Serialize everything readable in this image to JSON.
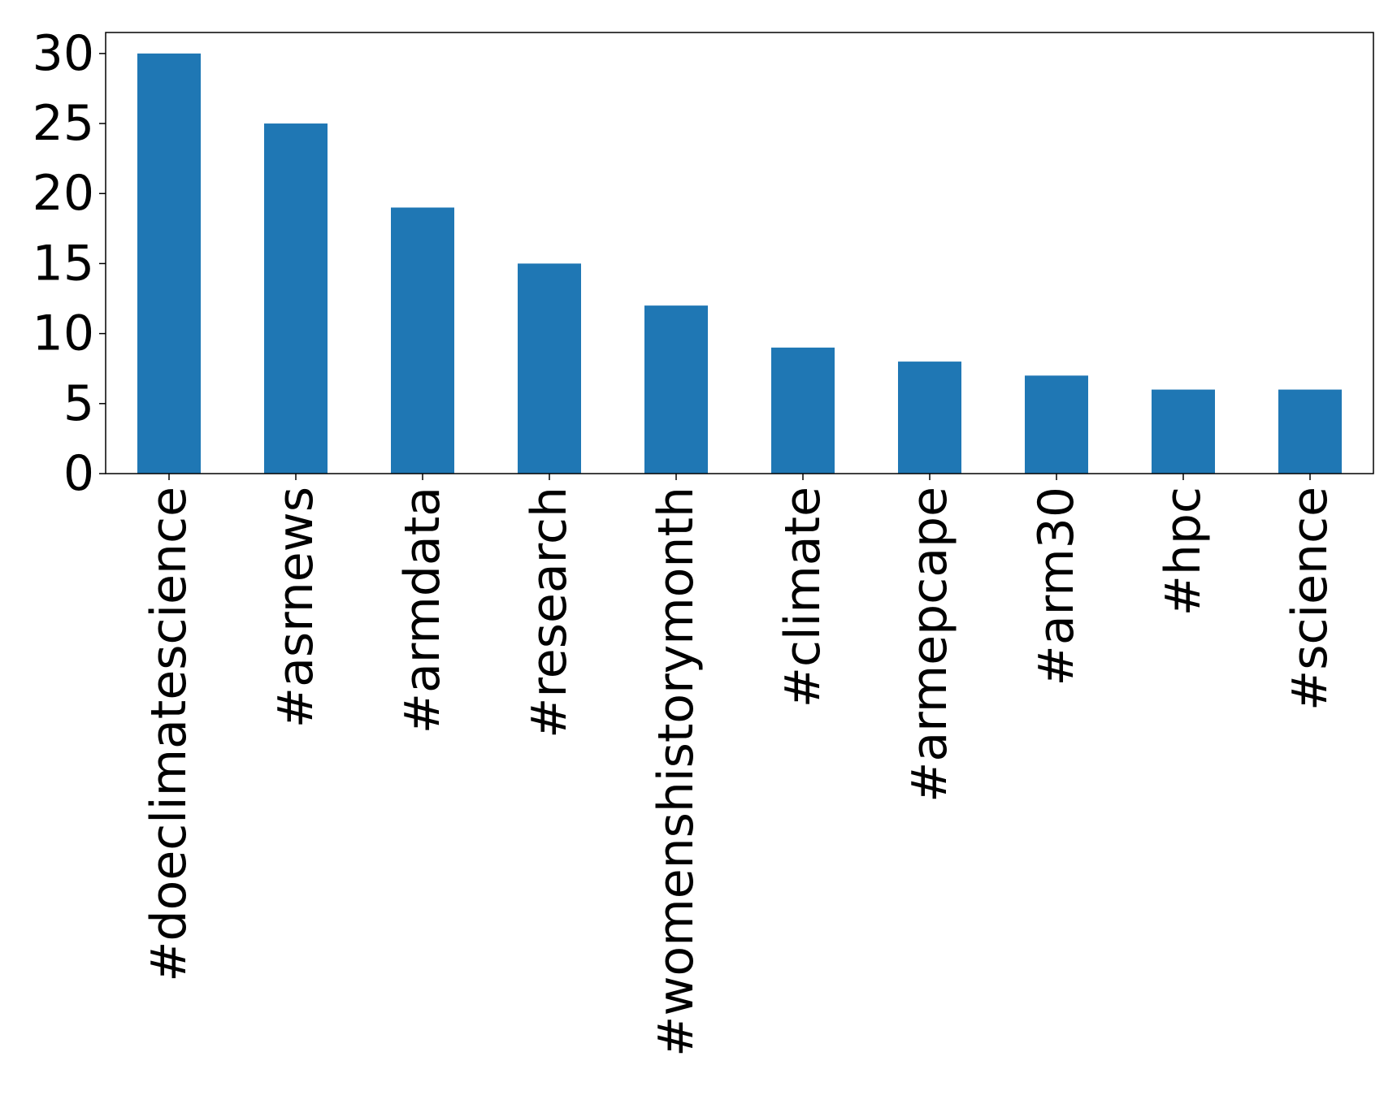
{
  "chart_data": {
    "type": "bar",
    "title": "",
    "xlabel": "",
    "ylabel": "",
    "categories": [
      "#doeclimatescience",
      "#asrnews",
      "#armdata",
      "#research",
      "#womenshistorymonth",
      "#climate",
      "#armepcape",
      "#arm30",
      "#hpc",
      "#science"
    ],
    "values": [
      30,
      25,
      19,
      15,
      12,
      9,
      8,
      7,
      6,
      6
    ],
    "ylim": [
      0,
      31.5
    ],
    "yticks": [
      "0",
      "5",
      "10",
      "15",
      "20",
      "25",
      "30"
    ],
    "bar_color": "#1f77b4",
    "grid": false,
    "legend": "none"
  }
}
